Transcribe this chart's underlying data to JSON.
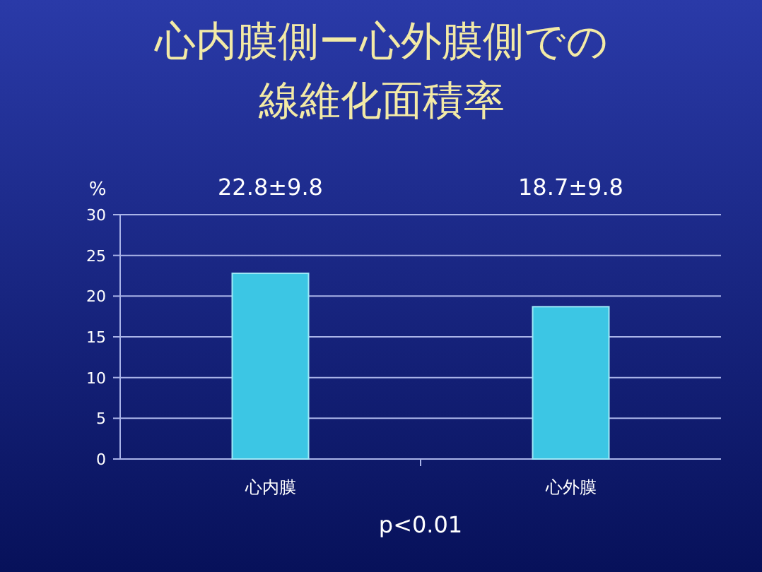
{
  "chart_data": {
    "type": "bar",
    "title": "心内膜側ー心外膜側での線維化面積率",
    "ylabel": "%",
    "categories": [
      "心内膜",
      "心外膜"
    ],
    "values": [
      22.8,
      18.7
    ],
    "color": "#3cc6e4",
    "ylim": [
      0,
      30
    ],
    "yticks": [
      0,
      5,
      10,
      15,
      20,
      25,
      30
    ],
    "grid": "y",
    "annotations": [
      "22.8±9.8",
      "18.7±9.8",
      "p<0.01"
    ]
  }
}
